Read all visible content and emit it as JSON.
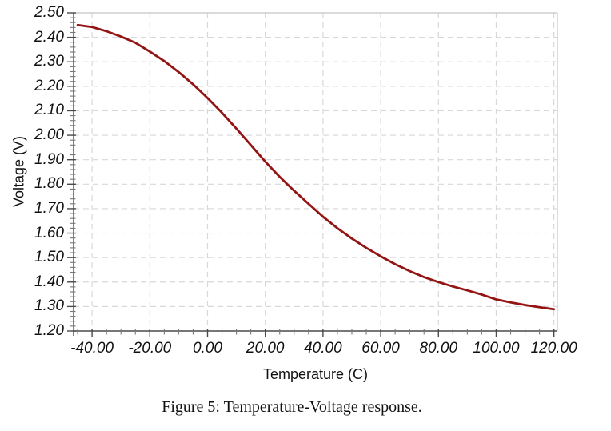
{
  "figure": {
    "caption": "Figure 5: Temperature-Voltage response."
  },
  "chart_data": {
    "type": "line",
    "title": "",
    "xlabel": "Temperature (C)",
    "ylabel": "Voltage (V)",
    "xlim": [
      -46.4,
      121.2
    ],
    "ylim": [
      1.2,
      2.5
    ],
    "x_ticks": [
      -40,
      -20,
      0,
      20,
      40,
      60,
      80,
      100,
      120
    ],
    "x_tick_labels": [
      "-40.00",
      "-20.00",
      "0.00",
      "20.00",
      "40.00",
      "60.00",
      "80.00",
      "100.00",
      "120.00"
    ],
    "y_ticks": [
      1.2,
      1.3,
      1.4,
      1.5,
      1.6,
      1.7,
      1.8,
      1.9,
      2.0,
      2.1,
      2.2,
      2.3,
      2.4,
      2.5
    ],
    "y_tick_labels": [
      "1.20",
      "1.30",
      "1.40",
      "1.50",
      "1.60",
      "1.70",
      "1.80",
      "1.90",
      "2.00",
      "2.10",
      "2.20",
      "2.30",
      "2.40",
      "2.50"
    ],
    "x_minor_step": 5,
    "y_minor_step": 0.02,
    "grid": true,
    "legend": "none",
    "colors": {
      "line": "#941414",
      "grid": "#d8d8d8",
      "frame": "#c4c4c4",
      "axis": "#4a4a4a",
      "minor_tick": "#777777",
      "text": "#111111"
    },
    "series": [
      {
        "name": "voltage",
        "x": [
          -45,
          -40,
          -35,
          -30,
          -25,
          -20,
          -15,
          -10,
          -5,
          0,
          5,
          10,
          15,
          20,
          25,
          30,
          35,
          40,
          45,
          50,
          55,
          60,
          65,
          70,
          75,
          80,
          85,
          90,
          95,
          100,
          105,
          110,
          115,
          120
        ],
        "y": [
          2.45,
          2.442,
          2.425,
          2.403,
          2.378,
          2.342,
          2.303,
          2.258,
          2.208,
          2.152,
          2.092,
          2.027,
          1.96,
          1.892,
          1.83,
          1.773,
          1.72,
          1.667,
          1.62,
          1.578,
          1.54,
          1.505,
          1.473,
          1.445,
          1.42,
          1.4,
          1.382,
          1.366,
          1.349,
          1.329,
          1.317,
          1.306,
          1.297,
          1.289
        ]
      }
    ]
  }
}
